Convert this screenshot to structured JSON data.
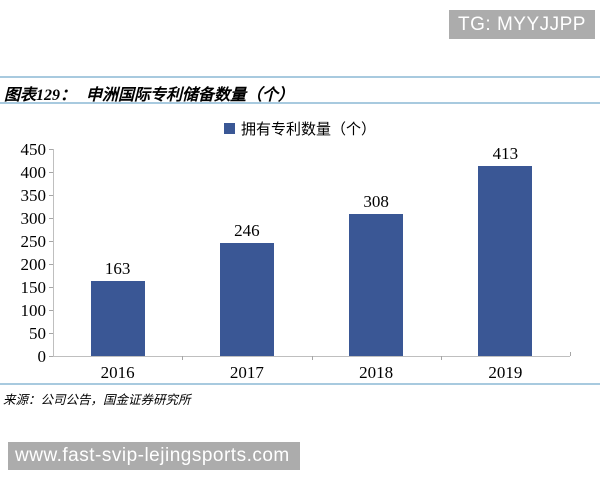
{
  "watermarks": {
    "top": "TG: MYYJJPP",
    "bottom": "www.fast-svip-lejingsports.com"
  },
  "figure": {
    "label": "图表129：",
    "title": "申洲国际专利储备数量（个）",
    "legend": "拥有专利数量（个）",
    "source": "来源：公司公告，国金证券研究所"
  },
  "chart_data": {
    "type": "bar",
    "title": "申洲国际专利储备数量（个）",
    "categories": [
      "2016",
      "2017",
      "2018",
      "2019"
    ],
    "series": [
      {
        "name": "拥有专利数量（个）",
        "values": [
          163,
          246,
          308,
          413
        ]
      }
    ],
    "ylim": [
      0,
      450
    ],
    "ytick_step": 50,
    "grid": false,
    "legend_position": "top",
    "bar_color": "#3a5795"
  },
  "colors": {
    "bar": "#3a5795",
    "divider": "#a8cadf",
    "axis": "#bfbfbf",
    "banner_bg": "#acacac",
    "banner_text": "#ffffff"
  }
}
